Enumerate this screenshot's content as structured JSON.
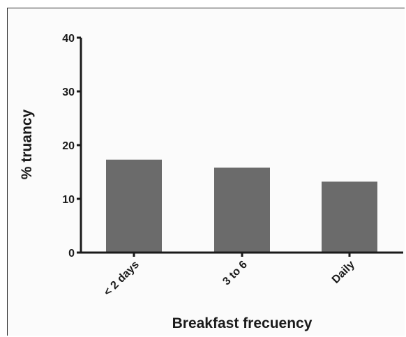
{
  "chart_data": {
    "type": "bar",
    "title": "",
    "xlabel": "Breakfast frecuency",
    "ylabel": "% truancy",
    "categories": [
      "< 2 days",
      "3 to 6",
      "Daily"
    ],
    "values": [
      17.3,
      15.8,
      13.2
    ],
    "ylim": [
      0,
      40
    ],
    "yticks": [
      0,
      10,
      20,
      30,
      40
    ],
    "ytick_labels": [
      "0",
      "10",
      "20",
      "30",
      "40"
    ],
    "bar_color": "#6b6b6b",
    "grid": false,
    "legend": "none"
  }
}
